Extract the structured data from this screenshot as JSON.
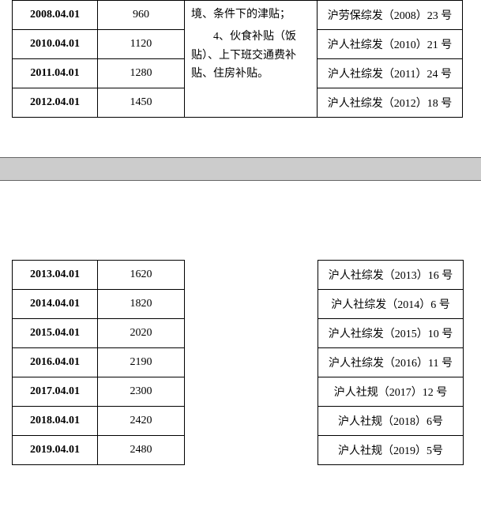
{
  "upper": {
    "desc_line1": "境、条件下的津贴；",
    "desc_line2": "4、伙食补贴（饭贴）、上下班交通费补贴、住房补贴。",
    "rows": [
      {
        "date": "2008.04.01",
        "value": "960",
        "ref": "沪劳保综发（2008）23 号"
      },
      {
        "date": "2010.04.01",
        "value": "1120",
        "ref": "沪人社综发（2010）21 号"
      },
      {
        "date": "2011.04.01",
        "value": "1280",
        "ref": "沪人社综发（2011）24 号"
      },
      {
        "date": "2012.04.01",
        "value": "1450",
        "ref": "沪人社综发（2012）18 号"
      }
    ]
  },
  "lower": {
    "rows": [
      {
        "date": "2013.04.01",
        "value": "1620",
        "ref": "沪人社综发（2013）16 号"
      },
      {
        "date": "2014.04.01",
        "value": "1820",
        "ref": "沪人社综发（2014）6 号"
      },
      {
        "date": "2015.04.01",
        "value": "2020",
        "ref": "沪人社综发（2015）10 号"
      },
      {
        "date": "2016.04.01",
        "value": "2190",
        "ref": "沪人社综发（2016）11 号"
      },
      {
        "date": "2017.04.01",
        "value": "2300",
        "ref": "沪人社规（2017）12 号"
      },
      {
        "date": "2018.04.01",
        "value": "2420",
        "ref": "沪人社规（2018）6号"
      },
      {
        "date": "2019.04.01",
        "value": "2480",
        "ref": "沪人社规（2019）5号"
      }
    ]
  }
}
